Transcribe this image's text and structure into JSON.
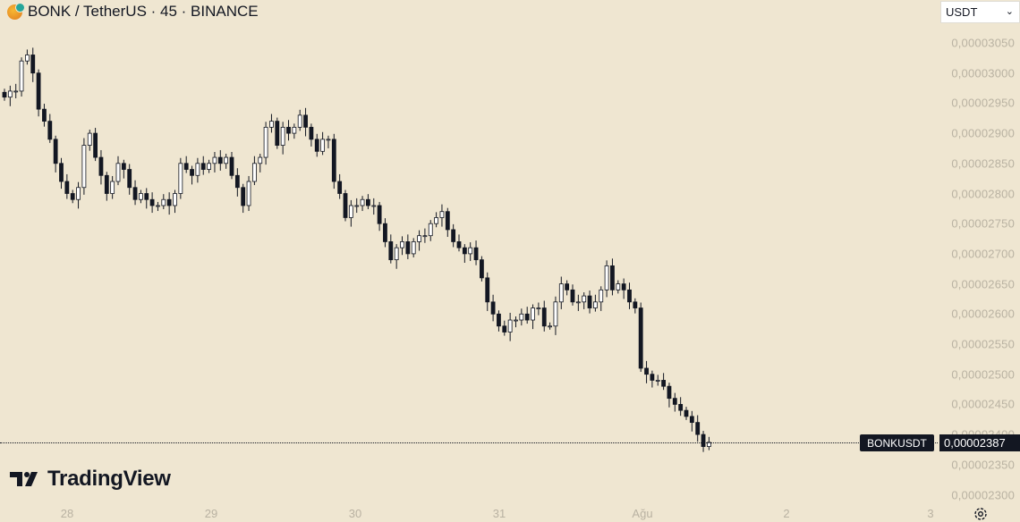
{
  "header": {
    "title": "BONK / TetherUS · 45 · BINANCE",
    "symbol_icon": "bonk-coin-icon"
  },
  "currency_select": {
    "value": "USDT",
    "icon": "chevron-down-icon"
  },
  "price_axis": {
    "ticks": [
      "0,00003050",
      "0,00003000",
      "0,00002950",
      "0,00002900",
      "0,00002850",
      "0,00002800",
      "0,00002750",
      "0,00002700",
      "0,00002650",
      "0,00002600",
      "0,00002550",
      "0,00002500",
      "0,00002450",
      "0,00002400",
      "0,00002350",
      "0,00002300"
    ]
  },
  "time_axis": {
    "labels": [
      "28",
      "29",
      "30",
      "31",
      "Ağu",
      "2",
      "3"
    ]
  },
  "last_price": {
    "symbol": "BONKUSDT",
    "value": "0,00002387"
  },
  "watermark": {
    "text": "TradingView",
    "logo": "tradingview-logo"
  },
  "settings_icon": "gear-icon",
  "colors": {
    "background": "#efe6d1",
    "candle_up_fill": "#ffffff",
    "candle_down_fill": "#131722",
    "candle_border": "#131722",
    "axis_text": "#b9b2a2"
  },
  "chart_data": {
    "type": "candlestick",
    "interval": "45",
    "ylim": [
      2.28e-05,
      3.06e-05
    ],
    "x_labels": [
      "28",
      "29",
      "30",
      "31",
      "Ağu",
      "2",
      "3"
    ],
    "last": 2.387e-05,
    "closes": [
      2960,
      2970,
      2970,
      3020,
      3030,
      3000,
      2940,
      2920,
      2890,
      2850,
      2820,
      2800,
      2790,
      2810,
      2880,
      2900,
      2860,
      2830,
      2800,
      2820,
      2850,
      2840,
      2810,
      2790,
      2800,
      2790,
      2780,
      2780,
      2790,
      2780,
      2800,
      2850,
      2840,
      2830,
      2850,
      2840,
      2850,
      2860,
      2850,
      2860,
      2830,
      2810,
      2780,
      2820,
      2850,
      2860,
      2910,
      2920,
      2880,
      2910,
      2900,
      2910,
      2930,
      2910,
      2890,
      2870,
      2890,
      2890,
      2820,
      2800,
      2760,
      2780,
      2780,
      2790,
      2780,
      2780,
      2750,
      2720,
      2690,
      2710,
      2720,
      2700,
      2720,
      2730,
      2730,
      2750,
      2760,
      2770,
      2740,
      2720,
      2710,
      2700,
      2710,
      2690,
      2660,
      2620,
      2600,
      2580,
      2570,
      2590,
      2590,
      2600,
      2590,
      2610,
      2610,
      2580,
      2580,
      2620,
      2650,
      2640,
      2620,
      2620,
      2630,
      2610,
      2620,
      2640,
      2680,
      2640,
      2650,
      2640,
      2620,
      2610,
      2510,
      2500,
      2490,
      2490,
      2480,
      2460,
      2450,
      2440,
      2430,
      2420,
      2400,
      2380,
      2387
    ]
  }
}
